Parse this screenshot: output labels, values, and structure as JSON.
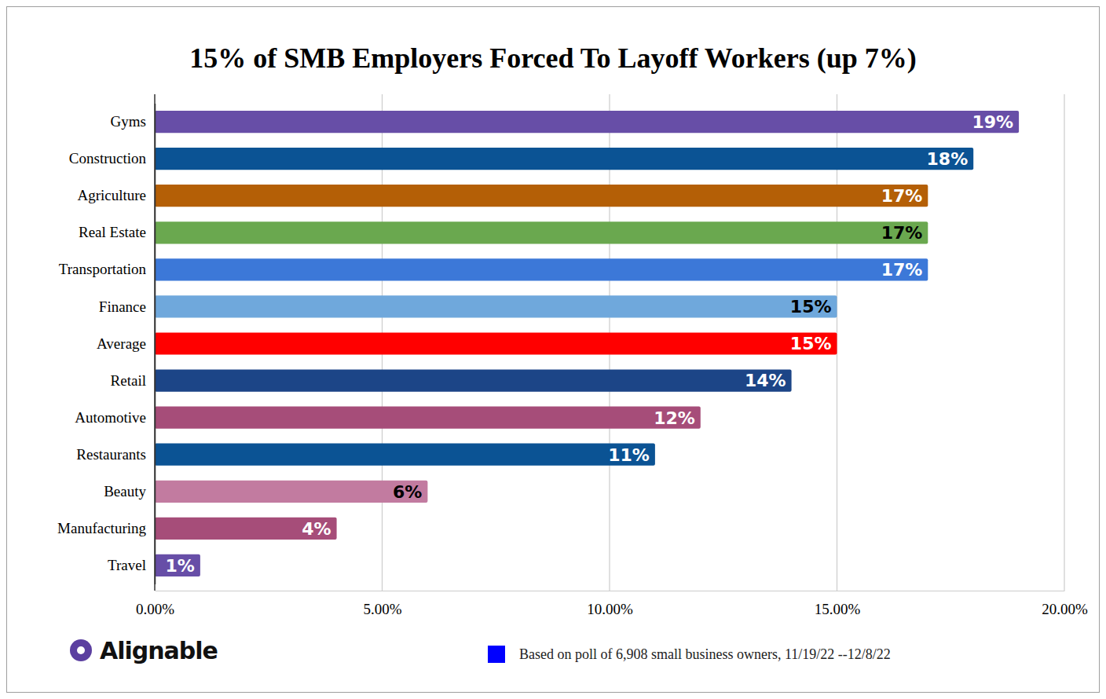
{
  "chart_data": {
    "type": "bar",
    "orientation": "horizontal",
    "title": "15% of SMB Employers Forced To Layoff Workers (up 7%)",
    "categories": [
      "Gyms",
      "Construction",
      "Agriculture",
      "Real Estate",
      "Transportation",
      "Finance",
      "Average",
      "Retail",
      "Automotive",
      "Restaurants",
      "Beauty",
      "Manufacturing",
      "Travel"
    ],
    "values": [
      19,
      18,
      17,
      17,
      17,
      15,
      15,
      14,
      12,
      11,
      6,
      4,
      1
    ],
    "value_labels": [
      "19%",
      "18%",
      "17%",
      "17%",
      "17%",
      "15%",
      "15%",
      "14%",
      "12%",
      "11%",
      "6%",
      "4%",
      "1%"
    ],
    "colors": [
      "#674ea7",
      "#0b5394",
      "#b45f06",
      "#6aa84f",
      "#3c78d8",
      "#6fa8dc",
      "#ff0000",
      "#1c4587",
      "#a64d79",
      "#0b5394",
      "#c27ba0",
      "#a64d79",
      "#674ea7"
    ],
    "xlim": [
      0,
      20
    ],
    "xticks": [
      {
        "value": 0,
        "label": "0.00%"
      },
      {
        "value": 5,
        "label": "5.00%"
      },
      {
        "value": 10,
        "label": "10.00%"
      },
      {
        "value": 15,
        "label": "15.00%"
      },
      {
        "value": 20,
        "label": "20.00%"
      }
    ],
    "grid": true,
    "data_labels": true,
    "annotations": [
      "Alignable",
      "Based on poll of 6,908 small business owners, 11/19/22 --12/8/22"
    ]
  }
}
